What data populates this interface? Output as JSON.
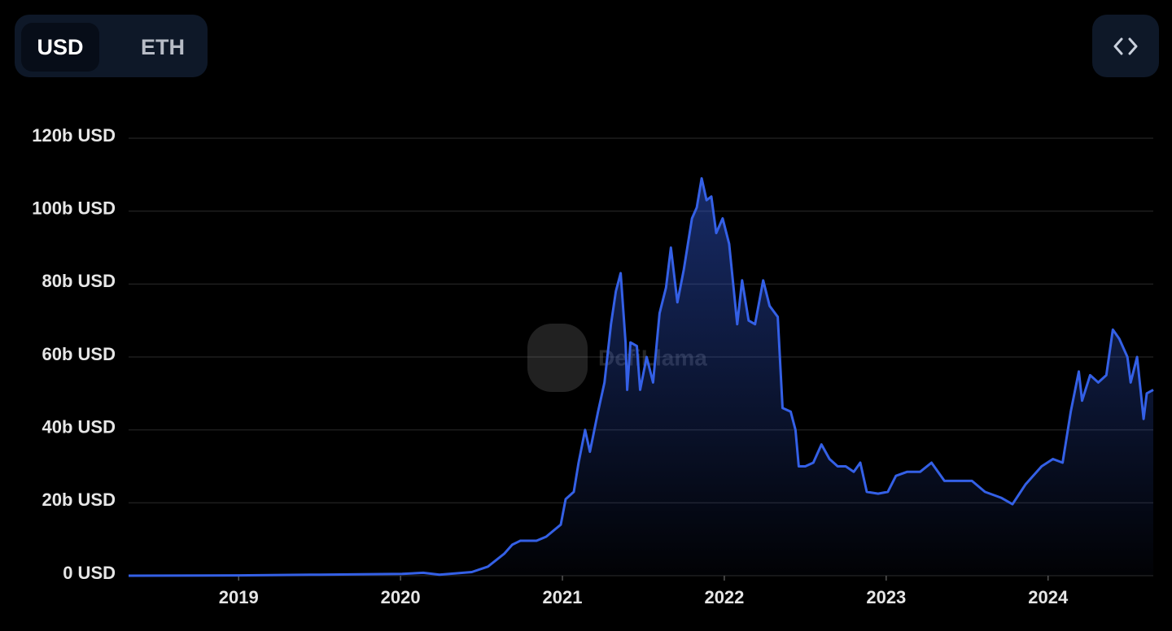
{
  "toggle": {
    "options": [
      "USD",
      "ETH"
    ]
  },
  "chart_data": {
    "type": "area",
    "watermark": "DefiLlama",
    "color": "#3460e6",
    "grid": true,
    "x": [
      2018.32,
      2019.0,
      2019.5,
      2020.01,
      2020.14,
      2020.24,
      2020.44,
      2020.54,
      2020.64,
      2020.69,
      2020.74,
      2020.84,
      2020.9,
      2020.99,
      2021.02,
      2021.07,
      2021.1,
      2021.14,
      2021.17,
      2021.22,
      2021.26,
      2021.3,
      2021.33,
      2021.36,
      2021.39,
      2021.4,
      2021.42,
      2021.46,
      2021.48,
      2021.52,
      2021.56,
      2021.6,
      2021.64,
      2021.67,
      2021.71,
      2021.75,
      2021.8,
      2021.83,
      2021.86,
      2021.89,
      2021.92,
      2021.95,
      2021.99,
      2022.03,
      2022.08,
      2022.11,
      2022.15,
      2022.19,
      2022.24,
      2022.28,
      2022.33,
      2022.36,
      2022.41,
      2022.44,
      2022.46,
      2022.5,
      2022.55,
      2022.6,
      2022.65,
      2022.7,
      2022.75,
      2022.8,
      2022.84,
      2022.88,
      2022.95,
      2023.01,
      2023.06,
      2023.13,
      2023.21,
      2023.28,
      2023.36,
      2023.46,
      2023.53,
      2023.61,
      2023.71,
      2023.78,
      2023.86,
      2023.96,
      2024.03,
      2024.09,
      2024.14,
      2024.19,
      2024.21,
      2024.26,
      2024.31,
      2024.36,
      2024.4,
      2024.44,
      2024.49,
      2024.51,
      2024.55,
      2024.59,
      2024.61,
      2024.65
    ],
    "values": [
      0,
      0.1,
      0.3,
      0.5,
      0.8,
      0.3,
      1,
      2.5,
      6,
      8.5,
      9.6,
      9.6,
      10.7,
      14,
      21,
      23,
      31,
      40,
      34,
      45,
      53,
      69,
      78,
      83,
      64,
      51,
      64,
      63,
      51,
      60,
      53,
      72,
      79,
      90,
      75,
      84,
      98,
      101,
      109,
      103,
      104,
      94,
      98,
      91,
      69,
      81,
      70,
      69,
      81,
      74,
      71,
      46,
      45,
      40,
      30,
      30,
      31,
      36,
      32,
      30,
      30,
      28.5,
      31,
      23,
      22.5,
      23,
      27.4,
      28.5,
      28.5,
      31,
      26,
      26,
      26,
      23,
      21.4,
      19.6,
      25,
      30,
      32,
      31,
      45,
      56,
      48,
      55,
      53,
      55,
      67.5,
      65,
      60,
      53,
      60,
      43,
      50,
      51
    ],
    "xlim": [
      2018.32,
      2024.65
    ],
    "xticks": [
      2019,
      2020,
      2021,
      2022,
      2023,
      2024
    ],
    "ylim": [
      0,
      120
    ],
    "yticks": [
      {
        "value": 0,
        "label": "0 USD"
      },
      {
        "value": 20,
        "label": "20b USD"
      },
      {
        "value": 40,
        "label": "40b USD"
      },
      {
        "value": 60,
        "label": "60b USD"
      },
      {
        "value": 80,
        "label": "80b USD"
      },
      {
        "value": 100,
        "label": "100b USD"
      },
      {
        "value": 120,
        "label": "120b USD"
      }
    ]
  }
}
